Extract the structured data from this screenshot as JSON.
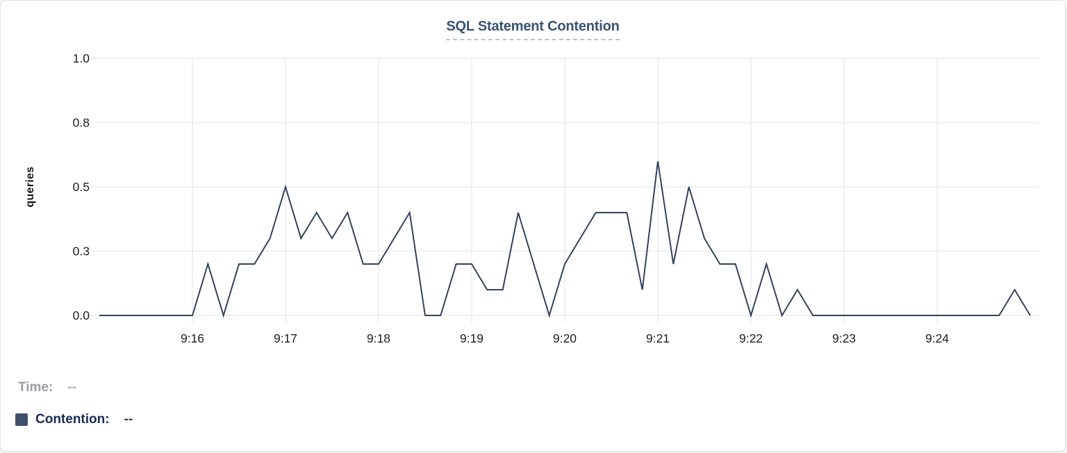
{
  "header": {
    "title": "SQL Statement Contention"
  },
  "legend": {
    "time_label": "Time:",
    "time_value": "--",
    "contention_label": "Contention:",
    "contention_value": "--"
  },
  "colors": {
    "line": "#33415e",
    "legend_swatch": "#41506b",
    "title": "#3b5073",
    "contention_text": "#1d2c51",
    "contention_value_text": "#2e3b5e",
    "grid": "#ececec",
    "tick_label": "#1d1e20"
  },
  "chart_data": {
    "type": "line",
    "title": "SQL Statement Contention",
    "xlabel": "",
    "ylabel": "queries",
    "ylim": [
      0,
      1.0
    ],
    "y_tick_labels": [
      "0.0",
      "0.3",
      "0.5",
      "0.8",
      "1.0"
    ],
    "y_tick_positions": [
      0,
      0.25,
      0.5,
      0.75,
      1.0
    ],
    "x_tick_labels": [
      "9:16",
      "9:17",
      "9:18",
      "9:19",
      "9:20",
      "9:21",
      "9:22",
      "9:23",
      "9:24"
    ],
    "x_start": "9:15:00",
    "x_end": "9:25:00",
    "sample_interval_seconds": 10,
    "grid": true,
    "legend_position": "bottom-left",
    "series": [
      {
        "name": "Contention",
        "unit": "queries",
        "values": [
          0,
          0,
          0,
          0,
          0,
          0,
          0,
          0.2,
          0,
          0.2,
          0.2,
          0.3,
          0.5,
          0.3,
          0.4,
          0.3,
          0.4,
          0.2,
          0.2,
          0.3,
          0.4,
          0,
          0,
          0.2,
          0.2,
          0.1,
          0.1,
          0.4,
          0.2,
          0,
          0.2,
          0.3,
          0.4,
          0.4,
          0.4,
          0.1,
          0.6,
          0.2,
          0.5,
          0.3,
          0.2,
          0.2,
          0,
          0.2,
          0,
          0.1,
          0,
          0,
          0,
          0,
          0,
          0,
          0,
          0,
          0,
          0,
          0,
          0,
          0,
          0.1,
          0
        ]
      }
    ]
  }
}
